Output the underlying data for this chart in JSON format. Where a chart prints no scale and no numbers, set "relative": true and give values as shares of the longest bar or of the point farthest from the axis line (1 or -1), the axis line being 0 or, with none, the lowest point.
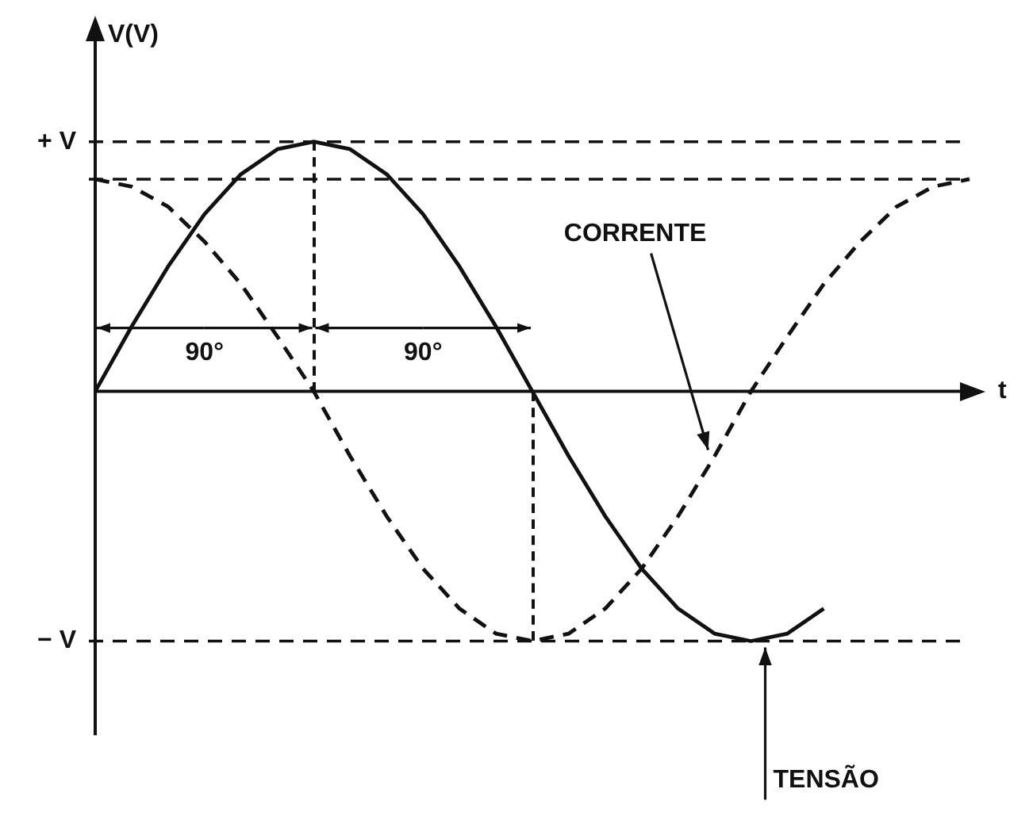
{
  "chart_data": {
    "type": "line",
    "relative": true,
    "xlabel": "t",
    "ylabel": "V(V)",
    "categories": [
      null,
      null,
      null,
      null,
      null,
      null,
      null,
      null,
      null,
      null,
      null,
      null,
      null,
      null,
      null,
      null,
      null,
      null,
      null,
      null,
      null,
      null,
      null,
      null,
      null
    ],
    "series": [
      {
        "color": "#111111",
        "line_style": "solid",
        "values": [
          0,
          0.26,
          0.5,
          0.71,
          0.87,
          0.97,
          1,
          0.97,
          0.87,
          0.71,
          0.5,
          0.26,
          0,
          -0.26,
          -0.5,
          -0.71,
          -0.87,
          -0.97,
          -1,
          -0.97,
          -0.87,
          null,
          null,
          null,
          null
        ]
      },
      {
        "color": "#111111",
        "line_style": "dashed",
        "values": [
          0.85,
          0.82,
          0.74,
          0.6,
          0.43,
          0.22,
          0,
          -0.26,
          -0.5,
          -0.71,
          -0.87,
          -0.97,
          -1,
          -0.97,
          -0.87,
          -0.71,
          -0.5,
          -0.26,
          0,
          0.22,
          0.43,
          0.6,
          0.74,
          0.82,
          0.85
        ]
      }
    ],
    "ref_lines": [
      {
        "axis": "y",
        "value": 1,
        "label": "+ V",
        "line_style": "dashed"
      },
      {
        "axis": "y",
        "value": 0.85,
        "line_style": "dashed"
      },
      {
        "axis": "y",
        "value": -1,
        "label": "− V",
        "line_style": "dashed"
      }
    ],
    "annotations": [
      "90°",
      "90°",
      "CORRENTE",
      "TENSÃO"
    ]
  }
}
